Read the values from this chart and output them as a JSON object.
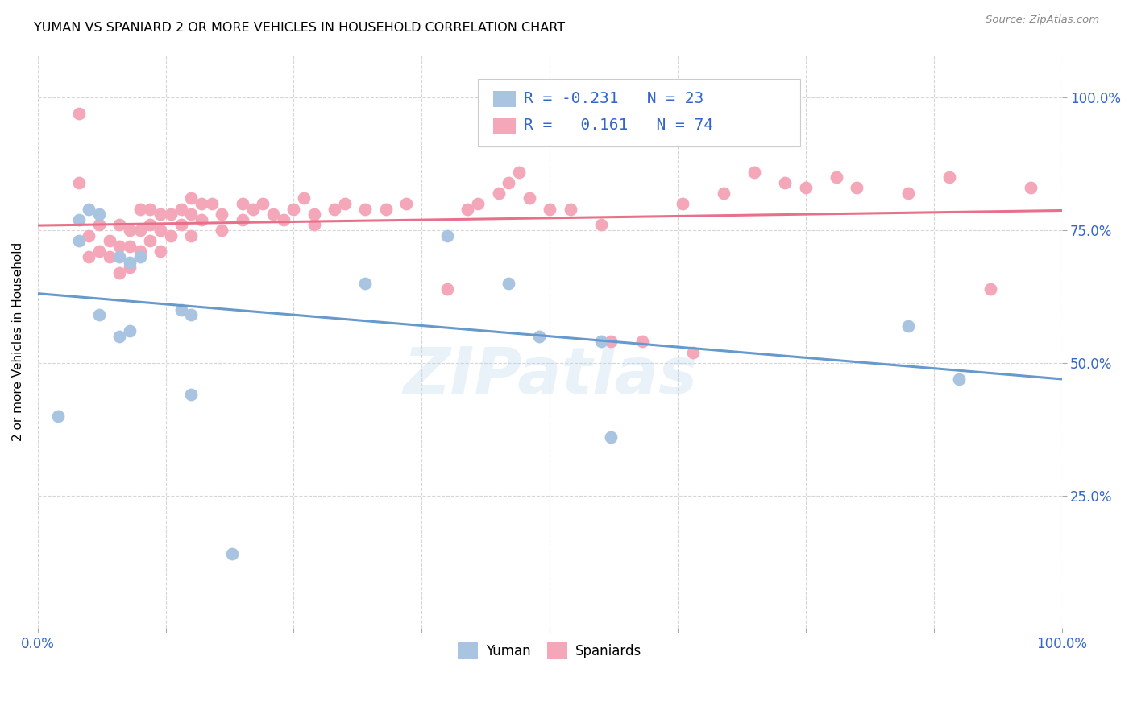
{
  "title": "YUMAN VS SPANIARD 2 OR MORE VEHICLES IN HOUSEHOLD CORRELATION CHART",
  "source": "Source: ZipAtlas.com",
  "ylabel": "2 or more Vehicles in Household",
  "xlim": [
    0.0,
    1.0
  ],
  "ylim": [
    0.0,
    1.08
  ],
  "yuman_color": "#a8c4e0",
  "spaniard_color": "#f4a7b9",
  "yuman_line_color": "#6699cc",
  "spaniard_line_color": "#e8708a",
  "legend_text_color": "#3366cc",
  "watermark": "ZIPatlas",
  "yuman_scatter_x": [
    0.02,
    0.04,
    0.04,
    0.05,
    0.06,
    0.06,
    0.08,
    0.08,
    0.09,
    0.09,
    0.1,
    0.14,
    0.15,
    0.15,
    0.19,
    0.32,
    0.4,
    0.46,
    0.49,
    0.55,
    0.56,
    0.85,
    0.9
  ],
  "yuman_scatter_y": [
    0.4,
    0.77,
    0.73,
    0.79,
    0.78,
    0.59,
    0.7,
    0.55,
    0.69,
    0.56,
    0.7,
    0.6,
    0.59,
    0.44,
    0.14,
    0.65,
    0.74,
    0.65,
    0.55,
    0.54,
    0.36,
    0.57,
    0.47
  ],
  "spaniard_scatter_x": [
    0.04,
    0.04,
    0.05,
    0.05,
    0.06,
    0.06,
    0.07,
    0.07,
    0.08,
    0.08,
    0.08,
    0.09,
    0.09,
    0.09,
    0.1,
    0.1,
    0.1,
    0.11,
    0.11,
    0.11,
    0.12,
    0.12,
    0.12,
    0.13,
    0.13,
    0.14,
    0.14,
    0.15,
    0.15,
    0.15,
    0.16,
    0.16,
    0.17,
    0.18,
    0.18,
    0.2,
    0.2,
    0.21,
    0.22,
    0.23,
    0.24,
    0.25,
    0.26,
    0.27,
    0.27,
    0.29,
    0.3,
    0.32,
    0.34,
    0.36,
    0.4,
    0.42,
    0.43,
    0.45,
    0.46,
    0.47,
    0.48,
    0.5,
    0.52,
    0.55,
    0.56,
    0.59,
    0.63,
    0.64,
    0.67,
    0.7,
    0.73,
    0.75,
    0.78,
    0.8,
    0.85,
    0.89,
    0.93,
    0.97
  ],
  "spaniard_scatter_y": [
    0.97,
    0.84,
    0.74,
    0.7,
    0.76,
    0.71,
    0.73,
    0.7,
    0.76,
    0.72,
    0.67,
    0.75,
    0.72,
    0.68,
    0.79,
    0.75,
    0.71,
    0.79,
    0.76,
    0.73,
    0.78,
    0.75,
    0.71,
    0.78,
    0.74,
    0.79,
    0.76,
    0.81,
    0.78,
    0.74,
    0.8,
    0.77,
    0.8,
    0.78,
    0.75,
    0.8,
    0.77,
    0.79,
    0.8,
    0.78,
    0.77,
    0.79,
    0.81,
    0.78,
    0.76,
    0.79,
    0.8,
    0.79,
    0.79,
    0.8,
    0.64,
    0.79,
    0.8,
    0.82,
    0.84,
    0.86,
    0.81,
    0.79,
    0.79,
    0.76,
    0.54,
    0.54,
    0.8,
    0.52,
    0.82,
    0.86,
    0.84,
    0.83,
    0.85,
    0.83,
    0.82,
    0.85,
    0.64,
    0.83
  ]
}
